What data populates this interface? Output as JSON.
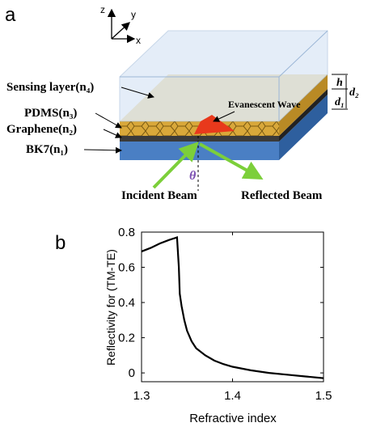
{
  "diagram": {
    "panel_label": "a",
    "axis_z": "z",
    "axis_y": "y",
    "axis_x": "x",
    "layers": [
      "Sensing layer(n₄)",
      "PDMS(n₃)",
      "Graphene(n₂)",
      "BK7(n₁)"
    ],
    "evanescent": "Evanescent Wave",
    "incident": "Incident Beam",
    "reflected": "Reflected Beam",
    "h": "h",
    "d2": "d₂",
    "d1": "d₁",
    "theta": "θ"
  },
  "chart_data": {
    "type": "line",
    "panel_label": "b",
    "x_label": "Refractive index",
    "y_label": "Reflectivity for (TM-TE)",
    "x": [
      1.3,
      1.31,
      1.32,
      1.33,
      1.336,
      1.339,
      1.341,
      1.342,
      1.344,
      1.347,
      1.35,
      1.355,
      1.36,
      1.37,
      1.38,
      1.39,
      1.4,
      1.42,
      1.44,
      1.46,
      1.48,
      1.5
    ],
    "values": [
      0.69,
      0.71,
      0.735,
      0.755,
      0.765,
      0.77,
      0.6,
      0.45,
      0.38,
      0.3,
      0.24,
      0.18,
      0.14,
      0.1,
      0.07,
      0.05,
      0.035,
      0.015,
      0.0,
      -0.01,
      -0.02,
      -0.03
    ],
    "color": "#000000",
    "xlim": [
      1.3,
      1.5
    ],
    "ylim": [
      -0.05,
      0.8
    ],
    "xticks": [
      1.3,
      1.4,
      1.5
    ],
    "yticks": [
      0,
      0.2,
      0.4,
      0.6,
      0.8
    ]
  }
}
